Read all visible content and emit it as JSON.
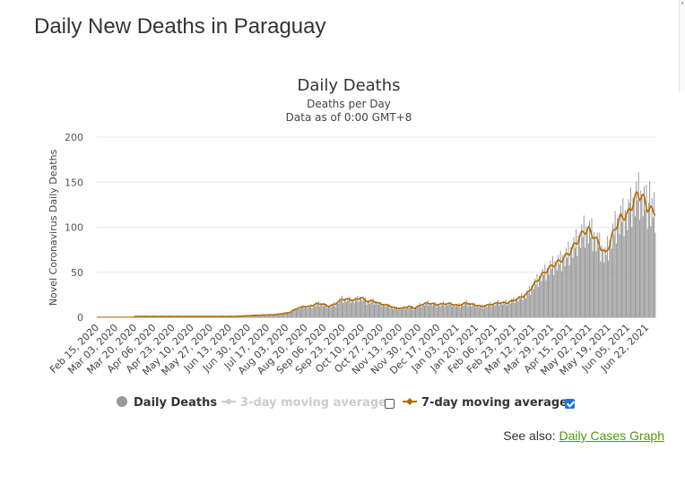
{
  "page": {
    "title": "Daily New Deaths in Paraguay"
  },
  "see_also": {
    "prefix": "See also: ",
    "link_label": "Daily Cases Graph"
  },
  "colors": {
    "bars": "#999999",
    "moving7": "#b36b00",
    "moving3": "#cccccc",
    "grid": "#e6e6e6",
    "link": "#4e9a06"
  },
  "chart_data": {
    "type": "bar",
    "title": "Daily Deaths",
    "subtitle_line1": "Deaths per Day",
    "subtitle_line2": "Data as of 0:00 GMT+8",
    "xlabel": "",
    "ylabel": "Novel Coronavirus Daily Deaths",
    "ylim": [
      0,
      200
    ],
    "yticks": [
      0,
      50,
      100,
      150,
      200
    ],
    "x_start": "2020-02-15",
    "x_end": "2021-06-30",
    "tick_labels": [
      "Feb 15, 2020",
      "Mar 03, 2020",
      "Mar 20, 2020",
      "Apr 06, 2020",
      "Apr 23, 2020",
      "May 10, 2020",
      "May 27, 2020",
      "Jun 13, 2020",
      "Jun 30, 2020",
      "Jul 17, 2020",
      "Aug 03, 2020",
      "Aug 20, 2020",
      "Sep 06, 2020",
      "Sep 23, 2020",
      "Oct 10, 2020",
      "Oct 27, 2020",
      "Nov 13, 2020",
      "Nov 30, 2020",
      "Dec 17, 2020",
      "Jan 03, 2021",
      "Jan 20, 2021",
      "Feb 06, 2021",
      "Feb 23, 2021",
      "Mar 12, 2021",
      "Mar 29, 2021",
      "Apr 15, 2021",
      "May 02, 2021",
      "May 19, 2021",
      "Jun 05, 2021",
      "Jun 22, 2021"
    ],
    "trend_points": [
      {
        "day": 0,
        "value": 0
      },
      {
        "day": 33,
        "value": 0
      },
      {
        "day": 34,
        "value": 1
      },
      {
        "day": 95,
        "value": 1
      },
      {
        "day": 125,
        "value": 1
      },
      {
        "day": 140,
        "value": 2
      },
      {
        "day": 160,
        "value": 3
      },
      {
        "day": 172,
        "value": 5
      },
      {
        "day": 180,
        "value": 10
      },
      {
        "day": 186,
        "value": 12
      },
      {
        "day": 191,
        "value": 12
      },
      {
        "day": 197,
        "value": 15
      },
      {
        "day": 202,
        "value": 15
      },
      {
        "day": 208,
        "value": 12
      },
      {
        "day": 214,
        "value": 15
      },
      {
        "day": 220,
        "value": 20
      },
      {
        "day": 225,
        "value": 20
      },
      {
        "day": 231,
        "value": 19
      },
      {
        "day": 237,
        "value": 22
      },
      {
        "day": 242,
        "value": 18
      },
      {
        "day": 248,
        "value": 18
      },
      {
        "day": 254,
        "value": 15
      },
      {
        "day": 262,
        "value": 13
      },
      {
        "day": 268,
        "value": 10
      },
      {
        "day": 274,
        "value": 10
      },
      {
        "day": 280,
        "value": 12
      },
      {
        "day": 285,
        "value": 10
      },
      {
        "day": 291,
        "value": 14
      },
      {
        "day": 297,
        "value": 16
      },
      {
        "day": 305,
        "value": 14
      },
      {
        "day": 311,
        "value": 15
      },
      {
        "day": 317,
        "value": 15
      },
      {
        "day": 324,
        "value": 13
      },
      {
        "day": 331,
        "value": 16
      },
      {
        "day": 338,
        "value": 14
      },
      {
        "day": 345,
        "value": 12
      },
      {
        "day": 352,
        "value": 14
      },
      {
        "day": 360,
        "value": 16
      },
      {
        "day": 368,
        "value": 16
      },
      {
        "day": 376,
        "value": 20
      },
      {
        "day": 385,
        "value": 25
      },
      {
        "day": 393,
        "value": 38
      },
      {
        "day": 400,
        "value": 48
      },
      {
        "day": 408,
        "value": 57
      },
      {
        "day": 416,
        "value": 63
      },
      {
        "day": 424,
        "value": 72
      },
      {
        "day": 431,
        "value": 85
      },
      {
        "day": 437,
        "value": 96
      },
      {
        "day": 441,
        "value": 97
      },
      {
        "day": 446,
        "value": 90
      },
      {
        "day": 451,
        "value": 80
      },
      {
        "day": 456,
        "value": 70
      },
      {
        "day": 460,
        "value": 82
      },
      {
        "day": 465,
        "value": 100
      },
      {
        "day": 470,
        "value": 111
      },
      {
        "day": 476,
        "value": 114
      },
      {
        "day": 481,
        "value": 127
      },
      {
        "day": 485,
        "value": 137
      },
      {
        "day": 489,
        "value": 134
      },
      {
        "day": 494,
        "value": 122
      },
      {
        "day": 499,
        "value": 117
      },
      {
        "day": 503,
        "value": 119
      },
      {
        "day": 507,
        "value": 130
      },
      {
        "day": 512,
        "value": 133
      }
    ],
    "noise_pattern": [
      0.85,
      1.12,
      0.95,
      1.18,
      0.8,
      1.05,
      1.0
    ],
    "highlight_bars": [
      {
        "day": 478,
        "value": 127
      },
      {
        "day": 496,
        "value": 151
      },
      {
        "day": 505,
        "value": 152
      },
      {
        "day": 512,
        "value": 121
      }
    ],
    "legend": [
      {
        "label": "Daily Deaths",
        "enabled": true
      },
      {
        "label": "3-day moving average",
        "enabled": false
      },
      {
        "label": "7-day moving average",
        "enabled": true
      }
    ]
  }
}
